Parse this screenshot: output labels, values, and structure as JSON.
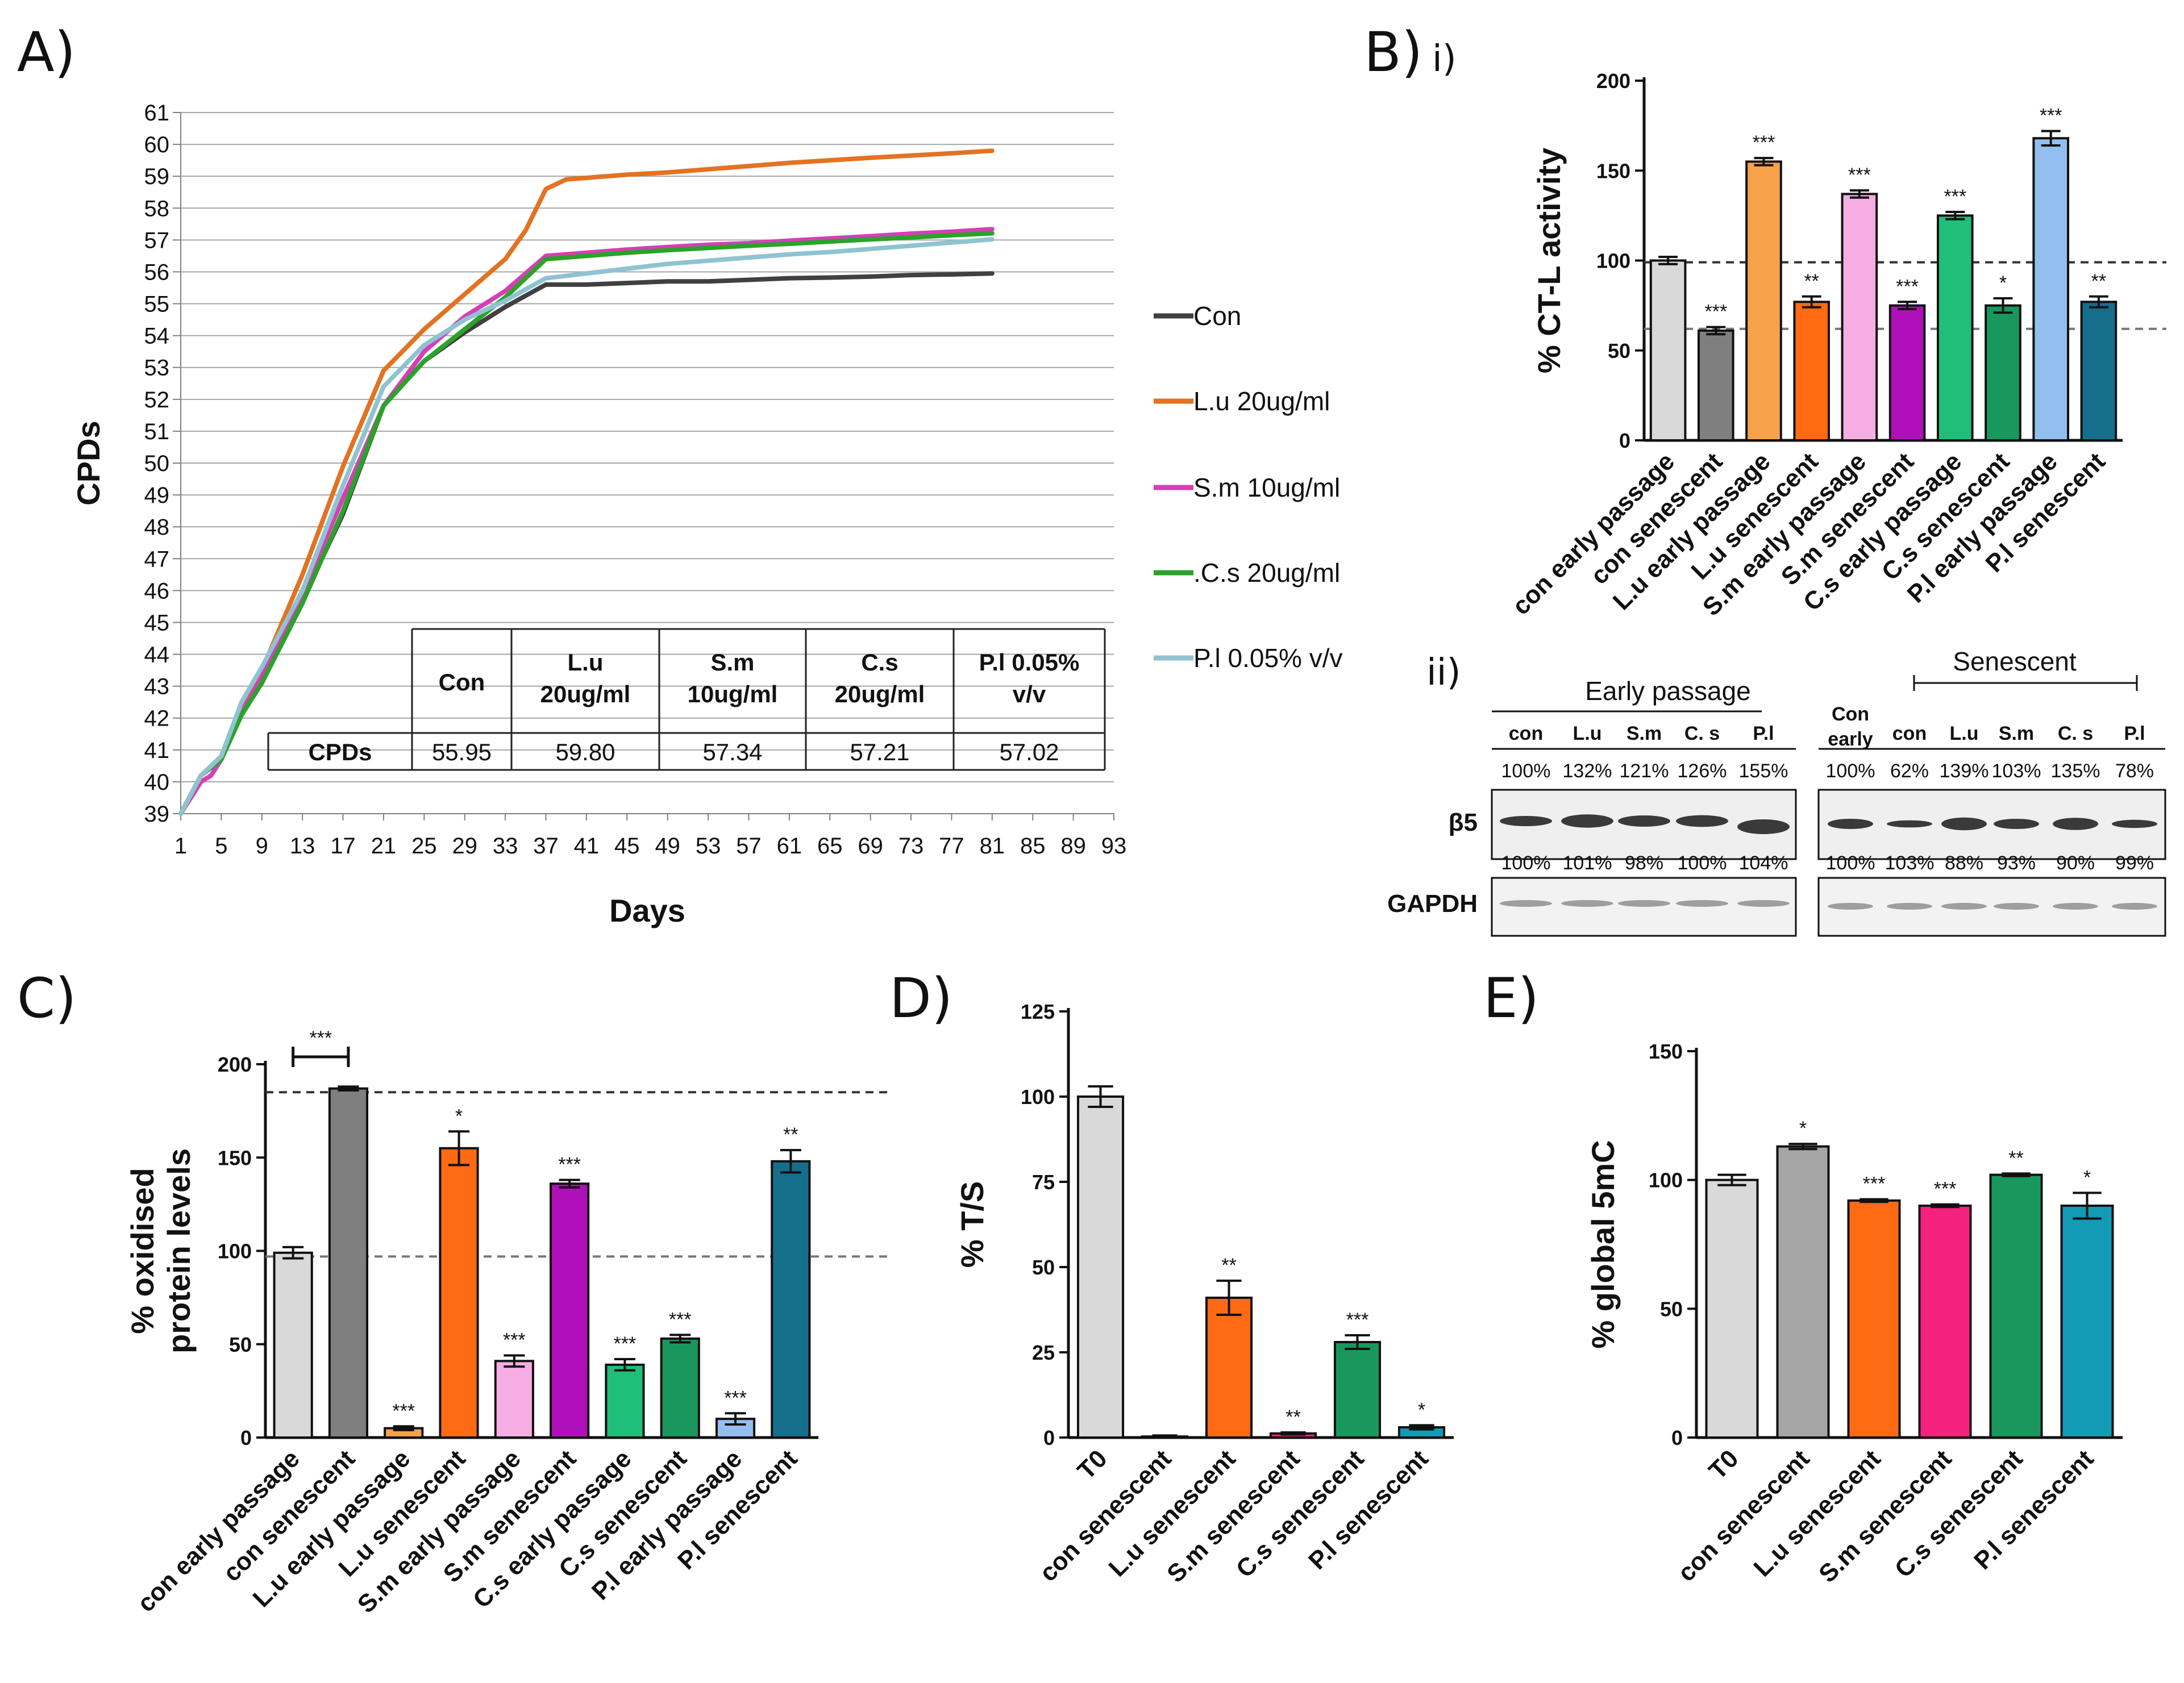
{
  "panels": {
    "a": {
      "letter": "A)"
    },
    "b": {
      "letter": "B)",
      "sub_i": "i)",
      "sub_ii": "ii)"
    },
    "c": {
      "letter": "C)"
    },
    "d": {
      "letter": "D)"
    },
    "e": {
      "letter": "E)"
    }
  },
  "colors": {
    "con": "#404040",
    "lu": "#e37222",
    "sm": "#d63fb5",
    "cs": "#29a329",
    "pl": "#8fc3d1",
    "bar_light_grey": "#d9d9d9",
    "bar_dark_grey": "#7f7f7f",
    "bar_light_orange": "#f6a24a",
    "bar_orange": "#ff6a13",
    "bar_pink": "#f4aee3",
    "bar_purple": "#b010b9",
    "bar_green": "#1fbf7a",
    "bar_dark_green": "#19985e",
    "bar_light_blue": "#93bff0",
    "bar_teal": "#156f8c",
    "bar_magenta": "#f5217e",
    "bar_grey_e": "#a5a5a5",
    "bar_teal_e": "#139ab5"
  },
  "chart_data": [
    {
      "id": "A",
      "type": "line",
      "title": "",
      "xlabel": "Days",
      "ylabel": "CPDs",
      "xlim": [
        1,
        93
      ],
      "ylim": [
        39,
        61
      ],
      "xticks": [
        1,
        5,
        9,
        13,
        17,
        21,
        25,
        29,
        33,
        37,
        41,
        45,
        49,
        53,
        57,
        61,
        65,
        69,
        73,
        77,
        81,
        85,
        89,
        93
      ],
      "yticks": [
        39,
        40,
        41,
        42,
        43,
        44,
        45,
        46,
        47,
        48,
        49,
        50,
        51,
        52,
        53,
        54,
        55,
        56,
        57,
        58,
        59,
        60,
        61
      ],
      "series": [
        {
          "name": "Con",
          "color_key": "con",
          "x": [
            1,
            3,
            5,
            7,
            9,
            13,
            17,
            21,
            25,
            29,
            33,
            37,
            41,
            45,
            49,
            53,
            57,
            61,
            65,
            69,
            73,
            77,
            81
          ],
          "y": [
            39.0,
            40.2,
            40.7,
            42.1,
            43.1,
            45.7,
            48.4,
            51.8,
            53.2,
            54.1,
            54.9,
            55.6,
            55.6,
            55.65,
            55.7,
            55.7,
            55.75,
            55.8,
            55.82,
            55.85,
            55.9,
            55.92,
            55.95
          ]
        },
        {
          "name": "L.u 20ug/ml",
          "color_key": "lu",
          "x": [
            1,
            3,
            5,
            7,
            9,
            13,
            17,
            21,
            25,
            29,
            33,
            35,
            37,
            39,
            41,
            45,
            49,
            53,
            57,
            61,
            65,
            69,
            73,
            77,
            81
          ],
          "y": [
            39.0,
            40.2,
            40.8,
            42.4,
            43.5,
            46.5,
            49.9,
            52.9,
            54.2,
            55.3,
            56.4,
            57.3,
            58.6,
            58.9,
            58.95,
            59.05,
            59.12,
            59.22,
            59.32,
            59.42,
            59.5,
            59.58,
            59.65,
            59.72,
            59.8
          ]
        },
        {
          "name": "S.m 10ug/ml",
          "color_key": "sm",
          "x": [
            1,
            3,
            4,
            5,
            7,
            9,
            13,
            17,
            21,
            25,
            29,
            33,
            37,
            41,
            45,
            49,
            53,
            57,
            61,
            65,
            69,
            73,
            77,
            81
          ],
          "y": [
            39.0,
            40.0,
            40.2,
            40.7,
            42.2,
            43.3,
            45.9,
            48.9,
            51.8,
            53.5,
            54.6,
            55.4,
            56.5,
            56.6,
            56.7,
            56.78,
            56.85,
            56.9,
            56.98,
            57.05,
            57.12,
            57.2,
            57.26,
            57.34
          ]
        },
        {
          "name": ".C.s 20ug/ml",
          "color_key": "cs",
          "x": [
            1,
            3,
            5,
            7,
            9,
            13,
            17,
            21,
            25,
            29,
            33,
            37,
            41,
            45,
            49,
            53,
            57,
            61,
            65,
            69,
            73,
            77,
            81
          ],
          "y": [
            39.0,
            40.2,
            40.7,
            42.1,
            43.1,
            45.6,
            48.5,
            51.8,
            53.2,
            54.2,
            55.2,
            56.4,
            56.5,
            56.6,
            56.68,
            56.75,
            56.82,
            56.88,
            56.95,
            57.02,
            57.08,
            57.15,
            57.21
          ]
        },
        {
          "name": "P.l 0.05% v/v",
          "color_key": "pl",
          "x": [
            1,
            3,
            5,
            7,
            9,
            13,
            17,
            21,
            25,
            29,
            33,
            37,
            41,
            45,
            49,
            53,
            57,
            61,
            65,
            69,
            73,
            77,
            81
          ],
          "y": [
            39.0,
            40.2,
            40.8,
            42.5,
            43.6,
            46.0,
            49.3,
            52.4,
            53.7,
            54.5,
            55.1,
            55.8,
            55.95,
            56.1,
            56.25,
            56.35,
            56.45,
            56.55,
            56.62,
            56.72,
            56.82,
            56.92,
            57.02
          ]
        }
      ],
      "table": {
        "row_header": "CPDs",
        "columns": [
          "Con",
          "L.u\n20ug/ml",
          "S.m\n10ug/ml",
          "C.s\n20ug/ml",
          "P.l 0.05%\nv/v"
        ],
        "values": [
          "55.95",
          "59.80",
          "57.34",
          "57.21",
          "57.02"
        ]
      }
    },
    {
      "id": "B-i",
      "type": "bar",
      "ylabel": "% CT-L activity",
      "ylim": [
        0,
        200
      ],
      "yticks": [
        0,
        50,
        100,
        150,
        200
      ],
      "categories": [
        "con early passage",
        "con senescent",
        "L.u early passage",
        "L.u senescent",
        "S.m early passage",
        "S.m senescent",
        "C.s early passage",
        "C.s senescent",
        "P.l early passage",
        "P.l senescent"
      ],
      "values": [
        100,
        61,
        155,
        77,
        137,
        75,
        125,
        75,
        168,
        77
      ],
      "errors": [
        2,
        2,
        2,
        3,
        2,
        2,
        2,
        4,
        4,
        3
      ],
      "significance": [
        "",
        "***",
        "***",
        "**",
        "***",
        "***",
        "***",
        "*",
        "***",
        "**"
      ],
      "color_keys": [
        "bar_light_grey",
        "bar_dark_grey",
        "bar_light_orange",
        "bar_orange",
        "bar_pink",
        "bar_purple",
        "bar_green",
        "bar_dark_green",
        "bar_light_blue",
        "bar_teal"
      ],
      "ref_lines": [
        99,
        62
      ]
    },
    {
      "id": "C",
      "type": "bar",
      "ylabel": "% oxidised\nprotein levels",
      "ylim": [
        0,
        200
      ],
      "yticks": [
        0,
        50,
        100,
        150,
        200
      ],
      "categories": [
        "con early passage",
        "con senescent",
        "L.u early passage",
        "L.u senescent",
        "S.m early passage",
        "S.m senescent",
        "C.s early passage",
        "C.s senescent",
        "P.l early passage",
        "P.l senescent"
      ],
      "values": [
        99,
        187,
        5,
        155,
        41,
        136,
        39,
        53,
        10,
        148
      ],
      "errors": [
        3,
        1,
        1,
        9,
        3,
        2,
        3,
        2,
        3,
        6
      ],
      "significance": [
        "",
        "",
        "***",
        "*",
        "***",
        "***",
        "***",
        "***",
        "***",
        "**"
      ],
      "bracket": {
        "from": 0,
        "to": 1,
        "label": "***"
      },
      "color_keys": [
        "bar_light_grey",
        "bar_dark_grey",
        "bar_light_orange",
        "bar_orange",
        "bar_pink",
        "bar_purple",
        "bar_green",
        "bar_dark_green",
        "bar_light_blue",
        "bar_teal"
      ],
      "ref_lines": [
        185,
        97
      ]
    },
    {
      "id": "D",
      "type": "bar",
      "ylabel": "% T/S",
      "ylim": [
        0,
        125
      ],
      "yticks": [
        0,
        25,
        50,
        75,
        100,
        125
      ],
      "categories": [
        "T0",
        "con senescent",
        "L.u senescent",
        "S.m senescent",
        "C.s senescent",
        "P.l senescent"
      ],
      "values": [
        100,
        0.3,
        41,
        1.2,
        28,
        3
      ],
      "errors": [
        3,
        0.3,
        5,
        0.3,
        2,
        0.6
      ],
      "significance": [
        "",
        "",
        "**",
        "**",
        "***",
        "*"
      ],
      "color_keys": [
        "bar_light_grey",
        "bar_dark_grey",
        "bar_orange",
        "bar_magenta",
        "bar_dark_green",
        "bar_teal_e"
      ]
    },
    {
      "id": "E",
      "type": "bar",
      "ylabel": "% global 5mC",
      "ylim": [
        0,
        150
      ],
      "yticks": [
        0,
        50,
        100,
        150
      ],
      "categories": [
        "T0",
        "con senescent",
        "L.u senescent",
        "S.m senescent",
        "C.s senescent",
        "P.l senescent"
      ],
      "values": [
        100,
        113,
        92,
        90,
        102,
        90
      ],
      "errors": [
        2,
        1,
        0.5,
        0.5,
        0.5,
        5
      ],
      "significance": [
        "",
        "*",
        "***",
        "***",
        "**",
        "*"
      ],
      "color_keys": [
        "bar_light_grey",
        "bar_grey_e",
        "bar_orange",
        "bar_magenta",
        "bar_dark_green",
        "bar_teal_e"
      ]
    }
  ],
  "blot": {
    "early_header": "Early passage",
    "senescent_header": "Senescent",
    "early_lanes": [
      "con",
      "L.u",
      "S.m",
      "C. s",
      "P.l"
    ],
    "senescent_lanes": [
      "Con\nearly",
      "con",
      "L.u",
      "S.m",
      "C. s",
      "P.l"
    ],
    "row_beta5": "β5",
    "row_gapdh": "GAPDH",
    "early_beta5_pct": [
      "100%",
      "132%",
      "121%",
      "126%",
      "155%"
    ],
    "senescent_beta5_pct": [
      "100%",
      "62%",
      "139%",
      "103%",
      "135%",
      "78%"
    ],
    "early_gapdh_pct": [
      "100%",
      "101%",
      "98%",
      "100%",
      "104%"
    ],
    "senescent_gapdh_pct": [
      "100%",
      "103%",
      "88%",
      "93%",
      "90%",
      "99%"
    ]
  }
}
